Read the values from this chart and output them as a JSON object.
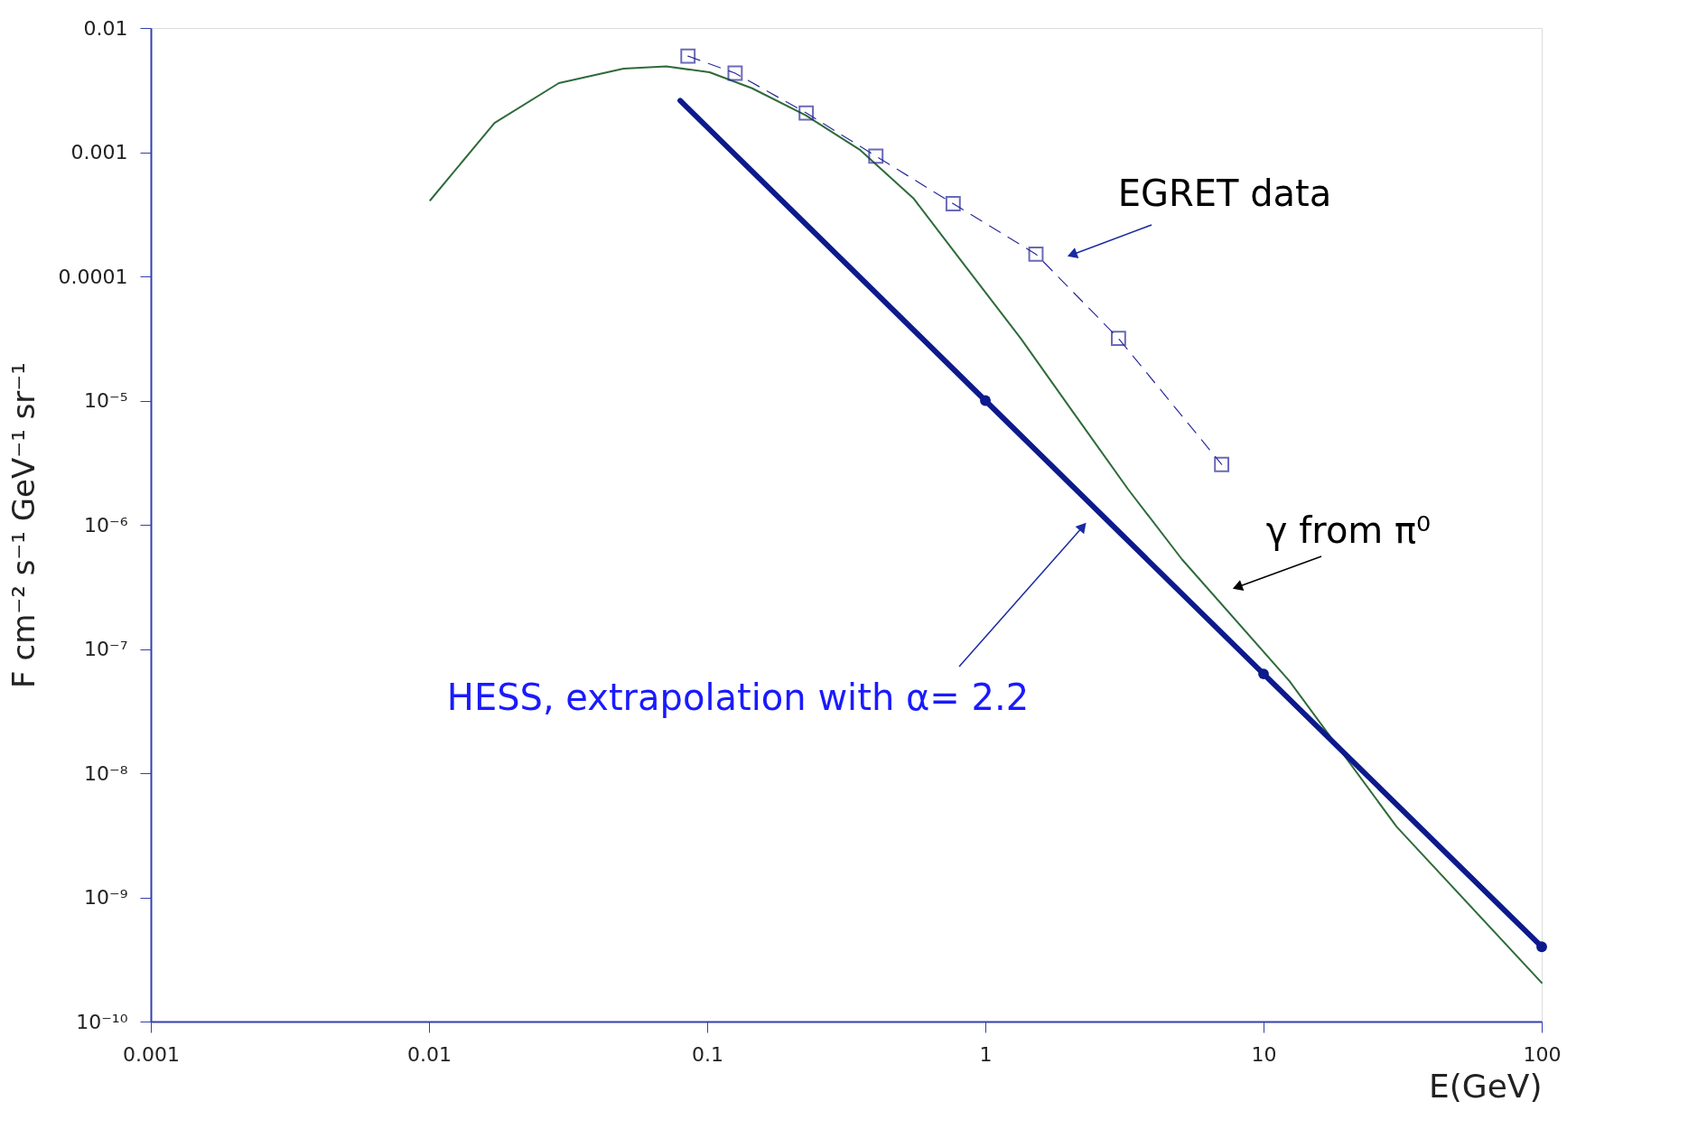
{
  "chart_data": {
    "type": "line",
    "xlabel": "E(GeV)",
    "ylabel": "F cm⁻² s⁻¹ GeV⁻¹ sr⁻¹",
    "log": "xy",
    "xlim": [
      0.001,
      100
    ],
    "ylim": [
      1e-10,
      0.01
    ],
    "xticks": [
      0.001,
      0.01,
      0.1,
      1,
      10,
      100
    ],
    "yticks": [
      {
        "value": 1e-10,
        "label": "10⁻¹⁰"
      },
      {
        "value": 1e-09,
        "label": "10⁻⁹"
      },
      {
        "value": 1e-08,
        "label": "10⁻⁸"
      },
      {
        "value": 1e-07,
        "label": "10⁻⁷"
      },
      {
        "value": 1e-06,
        "label": "10⁻⁶"
      },
      {
        "value": 1e-05,
        "label": "10⁻⁵"
      },
      0.0001,
      0.001,
      0.01
    ],
    "grid": false,
    "series": [
      {
        "type": "line",
        "color": "#2e6b3a",
        "marker": "none",
        "line_style": "solid",
        "x": [
          0.0101,
          0.0172,
          0.0293,
          0.05,
          0.0713,
          0.102,
          0.145,
          0.226,
          0.353,
          0.551,
          0.859,
          1.34,
          2.09,
          3.26,
          5.09,
          12.4,
          30.1,
          100
        ],
        "values": [
          0.00041,
          0.00172,
          0.0036,
          0.0047,
          0.0049,
          0.0044,
          0.00327,
          0.00198,
          0.00105,
          0.000426,
          0.000116,
          3.17e-05,
          7.8e-06,
          1.93e-06,
          5.27e-07,
          5.5e-08,
          3.7e-09,
          2.05e-10
        ]
      },
      {
        "type": "line",
        "color": "#2a2a9c",
        "marker": "square",
        "line_style": "dashed",
        "x": [
          0.0853,
          0.126,
          0.227,
          0.404,
          0.766,
          1.52,
          3.01,
          7.07
        ],
        "values": [
          0.00594,
          0.00433,
          0.00207,
          0.00093,
          0.000385,
          0.000151,
          3.17e-05,
          3.06e-06
        ]
      },
      {
        "type": "line",
        "color": "#0d1a8c",
        "marker": "none",
        "line_style": "solid",
        "x": [
          0.08,
          1,
          10,
          100
        ],
        "values": [
          0.0026,
          1e-05,
          6.3e-08,
          4e-10
        ]
      },
      {
        "type": "scatter",
        "color": "#0d1a8c",
        "marker": "circle",
        "x": [
          1,
          10,
          100
        ],
        "values": [
          1e-05,
          6.3e-08,
          4e-10
        ]
      }
    ],
    "annotations": [
      "EGRET data",
      "γ from π⁰",
      "HESS, extrapolation with α= 2.2"
    ]
  }
}
